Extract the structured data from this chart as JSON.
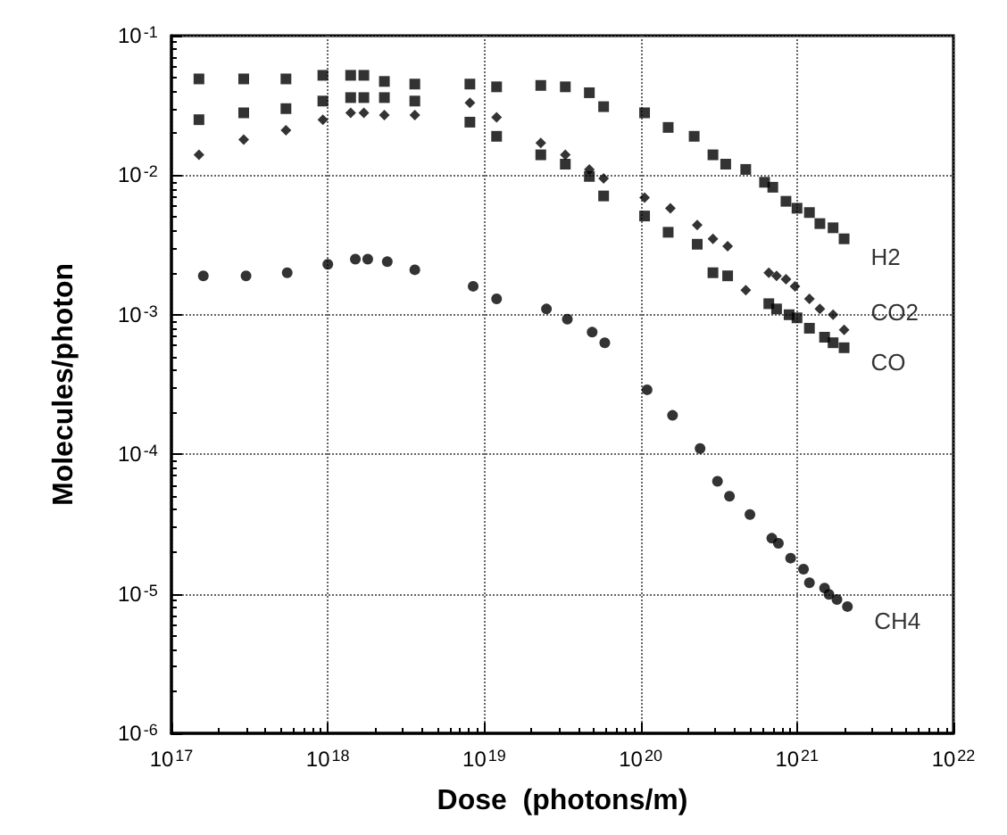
{
  "chart_data": {
    "type": "scatter",
    "xlabel": "Dose  (photons/m)",
    "ylabel": "Molecules/photon",
    "log": "xy",
    "grid": true,
    "legend": false,
    "xlim": [
      1e+17,
      1e+22
    ],
    "ylim": [
      1e-06,
      0.1
    ],
    "xticks": [
      {
        "value": 1e+17,
        "label": "10$^{17}$"
      },
      {
        "value": 1e+18,
        "label": "10$^{18}$"
      },
      {
        "value": 1e+19,
        "label": "10$^{19}$"
      },
      {
        "value": 1e+20,
        "label": "10$^{20}$"
      },
      {
        "value": 1e+21,
        "label": "10$^{21}$"
      },
      {
        "value": 1e+22,
        "label": "10$^{22}$"
      }
    ],
    "yticks": [
      {
        "value": 1e-06,
        "label": "10$^{-6}$"
      },
      {
        "value": 1e-05,
        "label": "10$^{-5}$"
      },
      {
        "value": 0.0001,
        "label": "10$^{-4}$"
      },
      {
        "value": 0.001,
        "label": "10$^{-3}$"
      },
      {
        "value": 0.01,
        "label": "10$^{-2}$"
      },
      {
        "value": 0.1,
        "label": "10$^{-1}$"
      }
    ],
    "series": [
      {
        "name": "H2",
        "color": "#000000",
        "marker": "square",
        "x": [
          1.5e+17,
          2.9e+17,
          5.4e+17,
          9.3e+17,
          1.4e+18,
          1.7e+18,
          2.3e+18,
          3.6e+18,
          8.1e+18,
          1.2e+19,
          2.3e+19,
          3.3e+19,
          4.7e+19,
          5.8e+19,
          1.06e+20,
          1.5e+20,
          2.2e+20,
          2.9e+20,
          3.5e+20,
          4.7e+20,
          6.2e+20,
          7e+20,
          8.5e+20,
          1e+21,
          1.2e+21,
          1.4e+21,
          1.7e+21,
          2e+21
        ],
        "values": [
          0.049,
          0.049,
          0.049,
          0.052,
          0.052,
          0.052,
          0.047,
          0.045,
          0.045,
          0.043,
          0.044,
          0.043,
          0.039,
          0.031,
          0.028,
          0.022,
          0.019,
          0.014,
          0.012,
          0.011,
          0.0089,
          0.0082,
          0.0065,
          0.0058,
          0.0054,
          0.0045,
          0.0042,
          0.0035
        ]
      },
      {
        "name": "CO2",
        "color": "#000000",
        "marker": "diamond",
        "x": [
          1.5e+17,
          2.9e+17,
          5.4e+17,
          9.3e+17,
          1.4e+18,
          1.7e+18,
          2.3e+18,
          3.6e+18,
          8.1e+18,
          1.2e+19,
          2.3e+19,
          3.3e+19,
          4.7e+19,
          5.8e+19,
          1.06e+20,
          1.55e+20,
          2.3e+20,
          2.9e+20,
          3.6e+20,
          4.7e+20,
          6.6e+20,
          7.4e+20,
          8.5e+20,
          9.7e+20,
          1.2e+21,
          1.4e+21,
          1.7e+21,
          2e+21
        ],
        "values": [
          0.014,
          0.018,
          0.021,
          0.025,
          0.028,
          0.028,
          0.027,
          0.027,
          0.033,
          0.026,
          0.017,
          0.014,
          0.011,
          0.0095,
          0.0069,
          0.0058,
          0.0044,
          0.0035,
          0.0031,
          0.0015,
          0.002,
          0.0019,
          0.0018,
          0.0016,
          0.0013,
          0.0011,
          0.001,
          0.00078
        ]
      },
      {
        "name": "CO",
        "color": "#000000",
        "marker": "square",
        "x": [
          1.5e+17,
          2.9e+17,
          5.4e+17,
          9.3e+17,
          1.4e+18,
          1.7e+18,
          2.3e+18,
          3.6e+18,
          8.1e+18,
          1.2e+19,
          2.3e+19,
          3.3e+19,
          4.7e+19,
          5.8e+19,
          1.06e+20,
          1.5e+20,
          2.3e+20,
          2.9e+20,
          3.6e+20,
          6.6e+20,
          7.4e+20,
          8.9e+20,
          1e+21,
          1.2e+21,
          1.5e+21,
          1.7e+21,
          2e+21
        ],
        "values": [
          0.025,
          0.028,
          0.03,
          0.034,
          0.036,
          0.036,
          0.036,
          0.034,
          0.024,
          0.019,
          0.014,
          0.012,
          0.0098,
          0.0071,
          0.0051,
          0.0039,
          0.0032,
          0.002,
          0.0019,
          0.0012,
          0.0011,
          0.001,
          0.00095,
          0.0008,
          0.00069,
          0.00063,
          0.00058
        ]
      },
      {
        "name": "CH4",
        "color": "#000000",
        "marker": "circle",
        "x": [
          1.6e+17,
          3e+17,
          5.5e+17,
          1e+18,
          1.5e+18,
          1.8e+18,
          2.4e+18,
          3.6e+18,
          8.5e+18,
          1.2e+19,
          2.5e+19,
          3.4e+19,
          4.9e+19,
          5.9e+19,
          1.1e+20,
          1.6e+20,
          2.4e+20,
          3.1e+20,
          3.7e+20,
          5e+20,
          6.9e+20,
          7.6e+20,
          9.1e+20,
          1.1e+21,
          1.2e+21,
          1.5e+21,
          1.6e+21,
          1.8e+21,
          2.1e+21
        ],
        "values": [
          0.0019,
          0.0019,
          0.002,
          0.0023,
          0.0025,
          0.0025,
          0.0024,
          0.0021,
          0.0016,
          0.0013,
          0.0011,
          0.00093,
          0.00075,
          0.00063,
          0.00029,
          0.00019,
          0.00011,
          6.4e-05,
          5e-05,
          3.7e-05,
          2.5e-05,
          2.3e-05,
          1.8e-05,
          1.5e-05,
          1.2e-05,
          1.1e-05,
          9.9e-06,
          9.1e-06,
          8.1e-06
        ]
      }
    ]
  }
}
